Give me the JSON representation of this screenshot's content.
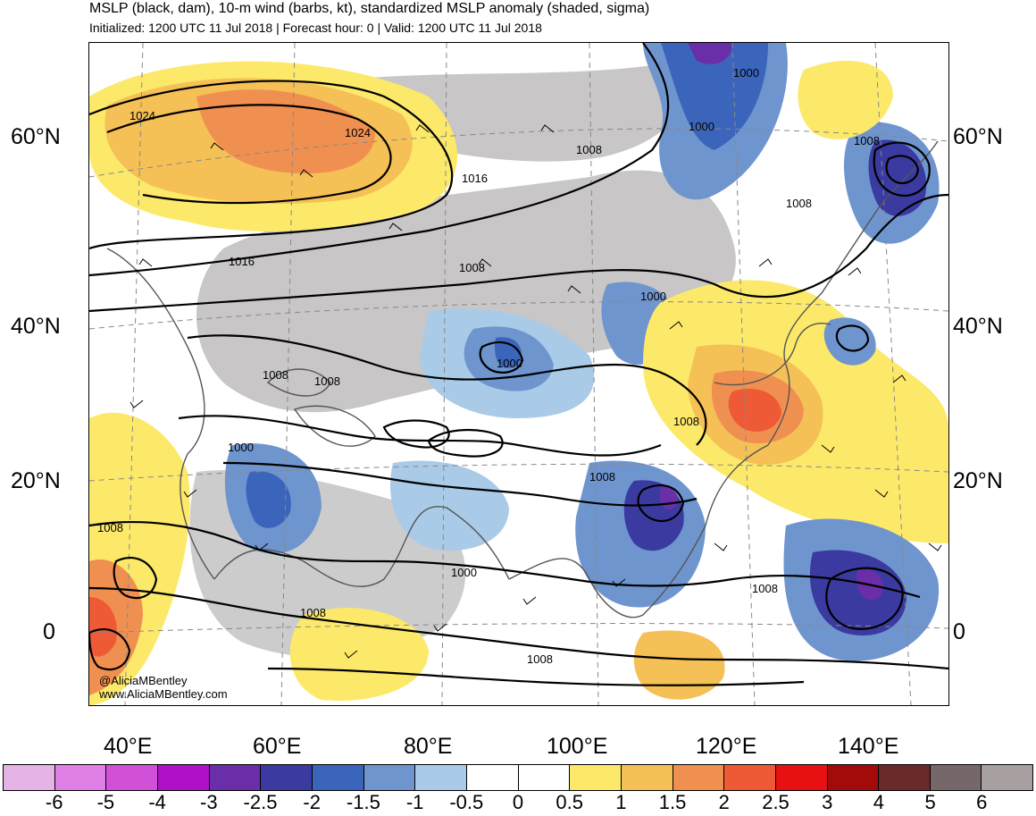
{
  "header": {
    "title": "MSLP (black, dam), 10-m wind (barbs, kt), standardized MSLP anomaly (shaded, sigma)",
    "subtitle": "Initialized: 1200 UTC 11 Jul 2018 | Forecast hour: 0 | Valid: 1200 UTC 11 Jul 2018"
  },
  "axes": {
    "lat_labels": [
      "60°N",
      "40°N",
      "20°N",
      "0"
    ],
    "lon_labels": [
      "40°E",
      "60°E",
      "80°E",
      "100°E",
      "120°E",
      "140°E"
    ]
  },
  "isobar_labels": [
    "1024",
    "1024",
    "1016",
    "1016",
    "1008",
    "1008",
    "1008",
    "1000",
    "1008",
    "1000",
    "1000",
    "1008",
    "1008",
    "1000",
    "1008",
    "1008",
    "1008",
    "1000",
    "1008",
    "1008",
    "1008",
    "1000"
  ],
  "credit": {
    "handle": "@AliciaMBentley",
    "url": "www.AliciaMBentley.com"
  },
  "colorbar": {
    "colors": [
      "#e6b3e6",
      "#e080e6",
      "#d050d8",
      "#b010c8",
      "#6a2fa8",
      "#3a3aa0",
      "#3b65bb",
      "#6f95cf",
      "#a9cbe8",
      "#ffffff",
      "#ffffff",
      "#fce96a",
      "#f5c055",
      "#f09050",
      "#ee5a35",
      "#e81010",
      "#a30b0b",
      "#6b2a2a",
      "#76686a",
      "#a8a0a0"
    ],
    "labels": [
      "-6",
      "-5",
      "-4",
      "-3",
      "-2.5",
      "-2",
      "-1.5",
      "-1",
      "-0.5",
      "0",
      "0.5",
      "1",
      "1.5",
      "2",
      "2.5",
      "3",
      "4",
      "5",
      "6"
    ]
  }
}
